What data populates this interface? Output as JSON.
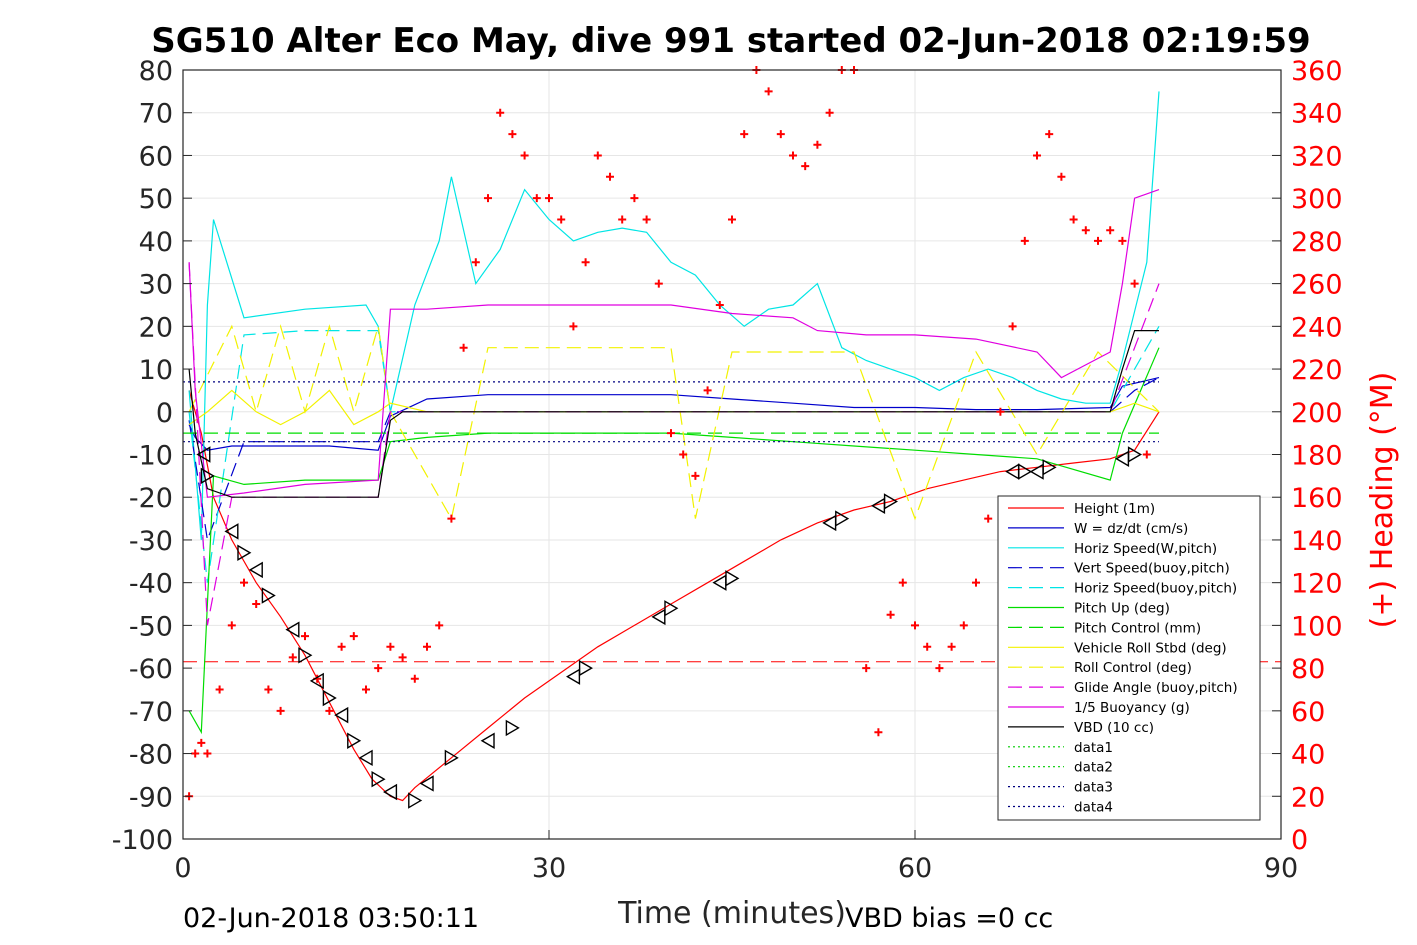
{
  "chart_data": {
    "type": "line",
    "title": "SG510 Alter Eco May, dive 991 started 02-Jun-2018 02:19:59",
    "xlabel": "Time (minutes)",
    "ylabel_right": "(+) Heading (°M)",
    "footer_left": "02-Jun-2018 03:50:11",
    "footer_right": "VBD bias =0 cc",
    "xlim": [
      0,
      90
    ],
    "ylim_left": [
      -100,
      80
    ],
    "ylim_right": [
      0,
      360
    ],
    "xticks": [
      "0",
      "30",
      "60",
      "90"
    ],
    "yticks_left": [
      "80",
      "70",
      "60",
      "50",
      "40",
      "30",
      "20",
      "10",
      "0",
      "-10",
      "-20",
      "-30",
      "-40",
      "-50",
      "-60",
      "-70",
      "-80",
      "-90",
      "-100"
    ],
    "yticks_right": [
      "360",
      "340",
      "320",
      "300",
      "280",
      "260",
      "240",
      "220",
      "200",
      "180",
      "160",
      "140",
      "120",
      "100",
      "80",
      "60",
      "40",
      "20",
      "0"
    ],
    "grid": true,
    "legend_position": "lower-right",
    "series": [
      {
        "name": "Height (1m)",
        "color": "#ff0000",
        "style": "solid",
        "x": [
          0.5,
          1.5,
          2.5,
          4,
          6,
          8,
          10,
          12,
          14,
          15.5,
          17,
          18,
          19,
          22,
          25,
          28,
          31,
          34,
          37,
          40,
          43,
          46,
          49,
          52,
          55,
          58,
          61,
          64,
          67,
          70,
          73,
          76,
          78,
          80
        ],
        "y": [
          5,
          -5,
          -20,
          -30,
          -40,
          -48,
          -57,
          -68,
          -79,
          -86,
          -90,
          -91,
          -88,
          -81,
          -74,
          -67,
          -61,
          -55,
          -50,
          -45,
          -40,
          -35,
          -30,
          -26,
          -23,
          -21,
          -18,
          -16,
          -14,
          -13,
          -12,
          -11,
          -9,
          0
        ]
      },
      {
        "name": "W = dz/dt (cm/s)",
        "color": "#0000cc",
        "style": "solid",
        "x": [
          0.5,
          1,
          2,
          4,
          8,
          12,
          16,
          17,
          20,
          25,
          30,
          35,
          40,
          45,
          50,
          55,
          60,
          65,
          70,
          76,
          77,
          80
        ],
        "y": [
          -3,
          -6,
          -9,
          -8,
          -8,
          -8,
          -9,
          -1,
          3,
          4,
          4,
          4,
          4,
          3,
          2,
          1,
          1,
          0.5,
          0.5,
          1,
          6,
          8
        ]
      },
      {
        "name": "Horiz Speed(W,pitch)",
        "color": "#00e5e5",
        "style": "solid",
        "x": [
          0.5,
          1.5,
          2,
          2.5,
          5,
          10,
          15,
          16,
          17,
          19,
          21,
          22,
          24,
          26,
          28,
          30,
          32,
          34,
          36,
          38,
          40,
          42,
          44,
          46,
          48,
          50,
          52,
          54,
          56,
          58,
          60,
          62,
          64,
          66,
          68,
          70,
          72,
          74,
          76,
          77,
          79,
          80
        ],
        "y": [
          5,
          -30,
          25,
          45,
          22,
          24,
          25,
          20,
          0,
          25,
          40,
          55,
          30,
          38,
          52,
          45,
          40,
          42,
          43,
          42,
          35,
          32,
          25,
          20,
          24,
          25,
          30,
          15,
          12,
          10,
          8,
          5,
          8,
          10,
          8,
          5,
          3,
          2,
          2,
          12,
          35,
          75
        ]
      },
      {
        "name": "Vert Speed(buoy,pitch)",
        "color": "#0000cc",
        "style": "dashed",
        "x": [
          0.5,
          2,
          5,
          10,
          16,
          17,
          20,
          30,
          40,
          50,
          60,
          70,
          76,
          78,
          80
        ],
        "y": [
          -2,
          -30,
          -7,
          -7,
          -7,
          0,
          0,
          0,
          0,
          0,
          0,
          0,
          0,
          5,
          8
        ]
      },
      {
        "name": "Horiz Speed(buoy,pitch)",
        "color": "#00e5e5",
        "style": "dashed",
        "x": [
          0.5,
          2,
          5,
          10,
          16,
          17,
          20,
          30,
          40,
          50,
          60,
          70,
          76,
          78,
          80
        ],
        "y": [
          0,
          -40,
          18,
          19,
          19,
          0,
          0,
          0,
          0,
          0,
          0,
          0,
          0,
          10,
          20
        ]
      },
      {
        "name": "Pitch Up (deg)",
        "color": "#00dd00",
        "style": "solid",
        "x": [
          0.5,
          1.5,
          2.5,
          5,
          10,
          16,
          17,
          20,
          25,
          30,
          35,
          40,
          45,
          50,
          55,
          60,
          65,
          70,
          76,
          77,
          80
        ],
        "y": [
          -70,
          -75,
          -15,
          -17,
          -16,
          -16,
          -7,
          -6,
          -5,
          -5,
          -5,
          -5,
          -6,
          -7,
          -8,
          -9,
          -10,
          -11,
          -16,
          -5,
          15
        ]
      },
      {
        "name": "Pitch Control (mm)",
        "color": "#00dd00",
        "style": "dashed",
        "x": [
          0,
          80
        ],
        "y": [
          -5,
          -5
        ]
      },
      {
        "name": "Vehicle Roll Stbd (deg)",
        "color": "#f2f200",
        "style": "solid",
        "x": [
          0.5,
          2,
          4,
          6,
          8,
          10,
          12,
          14,
          16,
          17,
          20,
          30,
          40,
          50,
          60,
          70,
          76,
          78,
          80
        ],
        "y": [
          -3,
          0,
          5,
          0,
          -3,
          0,
          5,
          -3,
          0,
          2,
          0,
          0,
          0,
          0,
          0,
          0,
          0,
          2,
          0
        ]
      },
      {
        "name": "Roll Control (deg)",
        "color": "#f2f200",
        "style": "dashed",
        "x": [
          0.5,
          4,
          6,
          8,
          10,
          12,
          14,
          16,
          17,
          22,
          25,
          30,
          40,
          42,
          45,
          50,
          55,
          60,
          65,
          70,
          75,
          80
        ],
        "y": [
          0,
          20,
          0,
          20,
          0,
          20,
          0,
          20,
          0,
          -25,
          15,
          15,
          15,
          -25,
          14,
          14,
          14,
          -25,
          14,
          -10,
          14,
          0
        ]
      },
      {
        "name": "Glide Angle (buoy,pitch)",
        "color": "#e000e0",
        "style": "dashed",
        "x": [
          0.5,
          2,
          4,
          10,
          16,
          17,
          20,
          30,
          40,
          50,
          60,
          70,
          76,
          78,
          80
        ],
        "y": [
          35,
          -50,
          -20,
          -20,
          -20,
          0,
          0,
          0,
          0,
          0,
          0,
          0,
          0,
          15,
          30
        ]
      },
      {
        "name": "1/5 Buoyancy (g)",
        "color": "#e000e0",
        "style": "solid",
        "x": [
          0.5,
          1,
          2,
          5,
          10,
          16,
          17,
          20,
          25,
          30,
          35,
          40,
          45,
          50,
          52,
          56,
          60,
          65,
          70,
          72,
          76,
          77,
          78,
          80
        ],
        "y": [
          35,
          5,
          -20,
          -19,
          -17,
          -16,
          24,
          24,
          25,
          25,
          25,
          25,
          23,
          22,
          19,
          18,
          18,
          17,
          14,
          8,
          14,
          30,
          50,
          52
        ]
      },
      {
        "name": "VBD (10 cc)",
        "color": "#000000",
        "style": "solid",
        "x": [
          0.5,
          1,
          2,
          4,
          10,
          16,
          17,
          18,
          30,
          40,
          50,
          60,
          70,
          76,
          77,
          78,
          80
        ],
        "y": [
          10,
          -5,
          -18,
          -20,
          -20,
          -20,
          -2,
          0,
          0,
          0,
          0,
          0,
          0,
          0,
          10,
          19,
          19
        ]
      },
      {
        "name": "data1",
        "color": "#00cc00",
        "style": "dotted",
        "x": [],
        "y": []
      },
      {
        "name": "data2",
        "color": "#00cc00",
        "style": "dotted",
        "x": [],
        "y": []
      },
      {
        "name": "data3",
        "color": "#000080",
        "style": "dotted",
        "x": [
          0,
          80
        ],
        "y": [
          7,
          7
        ]
      },
      {
        "name": "data4",
        "color": "#000080",
        "style": "dotted",
        "x": [
          0,
          80
        ],
        "y": [
          -7,
          -7
        ]
      }
    ],
    "reference_line_red_dashed": {
      "y": -58.5,
      "color": "#ff0000"
    },
    "heading_markers": {
      "color": "#ff0000",
      "axis": "right",
      "x": [
        0.5,
        1,
        1.5,
        2,
        3,
        4,
        5,
        6,
        7,
        8,
        9,
        10,
        11,
        12,
        13,
        14,
        15,
        16,
        17,
        18,
        19,
        20,
        21,
        22,
        23,
        24,
        25,
        26,
        27,
        28,
        29,
        30,
        31,
        32,
        33,
        34,
        35,
        36,
        37,
        38,
        39,
        40,
        41,
        42,
        43,
        44,
        45,
        46,
        47,
        48,
        49,
        50,
        51,
        52,
        53,
        54,
        55,
        56,
        57,
        58,
        59,
        60,
        61,
        62,
        63,
        64,
        65,
        66,
        67,
        68,
        69,
        70,
        71,
        72,
        73,
        74,
        75,
        76,
        77,
        78,
        79
      ],
      "y": [
        20,
        40,
        45,
        40,
        70,
        100,
        120,
        110,
        70,
        60,
        85,
        95,
        75,
        60,
        90,
        95,
        70,
        80,
        90,
        85,
        75,
        90,
        100,
        150,
        230,
        270,
        300,
        340,
        330,
        320,
        300,
        300,
        290,
        240,
        270,
        320,
        310,
        290,
        300,
        290,
        260,
        190,
        180,
        170,
        210,
        250,
        290,
        330,
        360,
        350,
        330,
        320,
        315,
        325,
        340,
        360,
        360,
        80,
        50,
        105,
        120,
        100,
        90,
        80,
        90,
        100,
        120,
        150,
        200,
        240,
        280,
        320,
        330,
        310,
        290,
        285,
        280,
        285,
        280,
        260,
        180
      ]
    },
    "gc_triangles": {
      "color": "#000000",
      "x": [
        1.7,
        2,
        4,
        5,
        6,
        7,
        9,
        10,
        11,
        12,
        13,
        14,
        15,
        16,
        17,
        19,
        20,
        22,
        25,
        27,
        32,
        33,
        39,
        40,
        44,
        45,
        53,
        54,
        57,
        58,
        68,
        69,
        70,
        71,
        77,
        78
      ],
      "y": [
        -10,
        -15,
        -28,
        -33,
        -37,
        -43,
        -51,
        -57,
        -63,
        -67,
        -71,
        -77,
        -81,
        -86,
        -89,
        -91,
        -87,
        -81,
        -77,
        -74,
        -62,
        -60,
        -48,
        -46,
        -40,
        -39,
        -26,
        -25,
        -22,
        -21,
        -14,
        -14,
        -14,
        -13,
        -11,
        -10
      ]
    }
  }
}
